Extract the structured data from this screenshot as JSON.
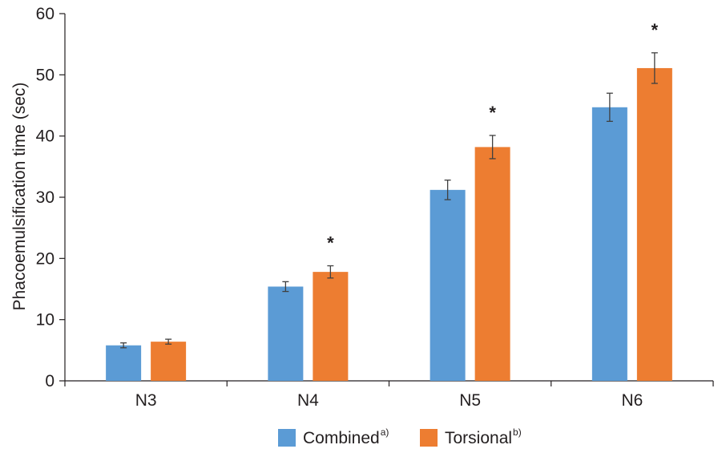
{
  "chart_data": {
    "type": "bar",
    "title": "",
    "xlabel": "",
    "ylabel": "Phacoemulsification time (sec)",
    "ylim": [
      0,
      60
    ],
    "yticks": [
      0,
      10,
      20,
      30,
      40,
      50,
      60
    ],
    "categories": [
      "N3",
      "N4",
      "N5",
      "N6"
    ],
    "series": [
      {
        "name": "Combined",
        "superscript": "a)",
        "color": "#5b9bd5",
        "values": [
          5.8,
          15.4,
          31.2,
          44.7
        ],
        "error": [
          0.4,
          0.8,
          1.6,
          2.3
        ]
      },
      {
        "name": "Torsional",
        "superscript": "b)",
        "color": "#ed7d31",
        "values": [
          6.4,
          17.8,
          38.2,
          51.1
        ],
        "error": [
          0.4,
          1.0,
          1.9,
          2.5
        ]
      }
    ],
    "significance_marker": "*",
    "significant_categories": [
      "N4",
      "N5",
      "N6"
    ],
    "legend_position": "bottom-center",
    "grid": false
  }
}
